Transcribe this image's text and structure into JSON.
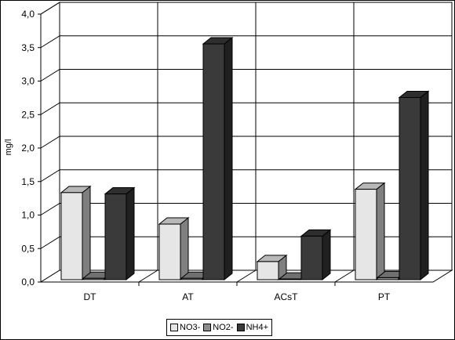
{
  "chart_data": {
    "type": "bar",
    "title": "",
    "xlabel": "",
    "ylabel": "mg/l",
    "ylim": [
      0,
      4
    ],
    "yticks": [
      "0,0",
      "0,5",
      "1,0",
      "1,5",
      "2,0",
      "2,5",
      "3,0",
      "3,5",
      "4,0"
    ],
    "categories": [
      "DT",
      "AT",
      "ACsT",
      "PT"
    ],
    "series": [
      {
        "name": "NO3-",
        "color": "#e6e6e6",
        "values": [
          1.3,
          0.83,
          0.27,
          1.35
        ]
      },
      {
        "name": "NO2-",
        "color": "#8c8c8c",
        "values": [
          0.02,
          0.02,
          0.01,
          0.03
        ]
      },
      {
        "name": "NH4+",
        "color": "#3a3a3a",
        "values": [
          1.28,
          3.52,
          0.65,
          2.72
        ]
      }
    ],
    "grid": true,
    "legend": "bottom",
    "style": "3d"
  }
}
